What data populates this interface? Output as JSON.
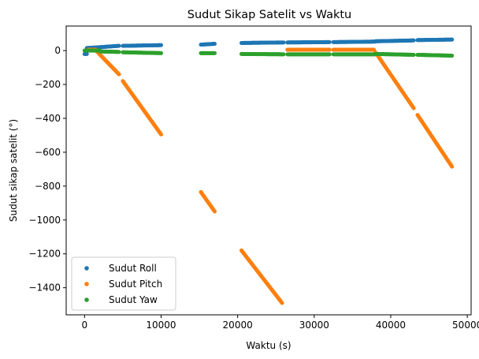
{
  "chart_data": {
    "type": "scatter",
    "title": "Sudut Sikap Satelit vs Waktu",
    "xlabel": "Waktu (s)",
    "ylabel": "Sudut sikap satelit (°)",
    "xlim": [
      -2400,
      50500
    ],
    "ylim": [
      -1560,
      145
    ],
    "xticks": [
      0,
      10000,
      20000,
      30000,
      40000,
      50000
    ],
    "yticks": [
      0,
      -200,
      -400,
      -600,
      -800,
      -1000,
      -1200,
      -1400
    ],
    "grid": false,
    "legend": "lower-left",
    "series": [
      {
        "name": "Sudut Roll",
        "color": "#1f77b4",
        "segments": [
          [
            0,
            -20,
            300,
            -20
          ],
          [
            300,
            15,
            2000,
            20
          ],
          [
            2000,
            20,
            4500,
            28
          ],
          [
            5000,
            28,
            10000,
            32
          ],
          [
            15200,
            35,
            17000,
            40
          ],
          [
            20500,
            45,
            26000,
            48
          ],
          [
            26500,
            48,
            32000,
            50
          ],
          [
            32500,
            50,
            38000,
            53
          ],
          [
            38000,
            55,
            43000,
            60
          ],
          [
            43500,
            62,
            48000,
            65
          ]
        ]
      },
      {
        "name": "Sudut Pitch",
        "color": "#ff7f0e",
        "segments": [
          [
            500,
            5,
            1500,
            5
          ],
          [
            1500,
            0,
            4500,
            -140
          ],
          [
            5000,
            -180,
            10000,
            -495
          ],
          [
            15200,
            -835,
            17000,
            -950
          ],
          [
            20500,
            -1180,
            25800,
            -1490
          ],
          [
            26500,
            5,
            32000,
            5
          ],
          [
            32500,
            5,
            37800,
            5
          ],
          [
            38000,
            -10,
            43000,
            -340
          ],
          [
            43500,
            -380,
            48000,
            -685
          ]
        ]
      },
      {
        "name": "Sudut Yaw",
        "color": "#2ca02c",
        "segments": [
          [
            0,
            0,
            2000,
            0
          ],
          [
            2000,
            -5,
            4500,
            -8
          ],
          [
            5000,
            -10,
            10000,
            -15
          ],
          [
            15200,
            -15,
            17000,
            -15
          ],
          [
            20500,
            -20,
            26000,
            -22
          ],
          [
            26500,
            -22,
            32000,
            -22
          ],
          [
            32500,
            -22,
            38000,
            -22
          ],
          [
            38000,
            -20,
            43000,
            -25
          ],
          [
            43500,
            -25,
            48000,
            -30
          ]
        ]
      }
    ]
  }
}
